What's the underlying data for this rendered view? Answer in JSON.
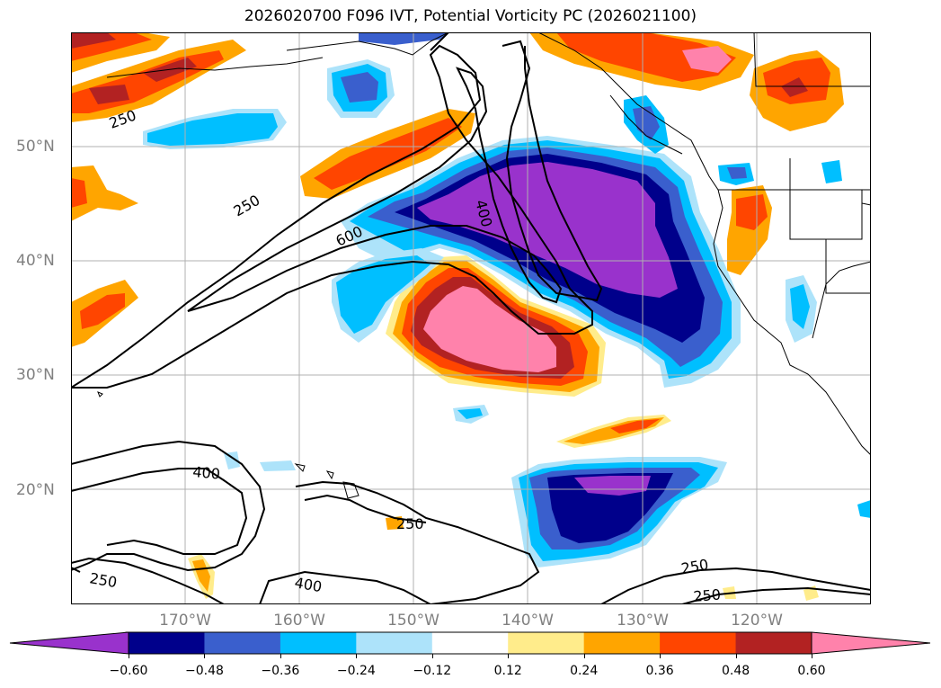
{
  "title": "2026020700 F096 IVT, Potential Vorticity PC (2026021100)",
  "lat_labels": [
    "50°N",
    "40°N",
    "30°N",
    "20°N"
  ],
  "lon_labels": [
    "170°W",
    "160°W",
    "150°W",
    "140°W",
    "130°W",
    "120°W"
  ],
  "contour_labels": [
    "250",
    "250",
    "600",
    "400",
    "400",
    "250",
    "400",
    "250",
    "250",
    "250"
  ],
  "colorbar": {
    "ticks": [
      "−0.60",
      "−0.48",
      "−0.36",
      "−0.24",
      "−0.12",
      "0.12",
      "0.24",
      "0.36",
      "0.48",
      "0.60"
    ],
    "colors": [
      "#9932CC",
      "#00008B",
      "#3A5FCD",
      "#00BFFF",
      "#ADE3FA",
      "#FFFFFF",
      "#FFEC8B",
      "#FFA500",
      "#FF4500",
      "#B22222",
      "#FF82AB"
    ]
  },
  "colors": {
    "lat_lon_label": "#808080",
    "grid": "#B0B0B0",
    "coast": "#000000"
  }
}
